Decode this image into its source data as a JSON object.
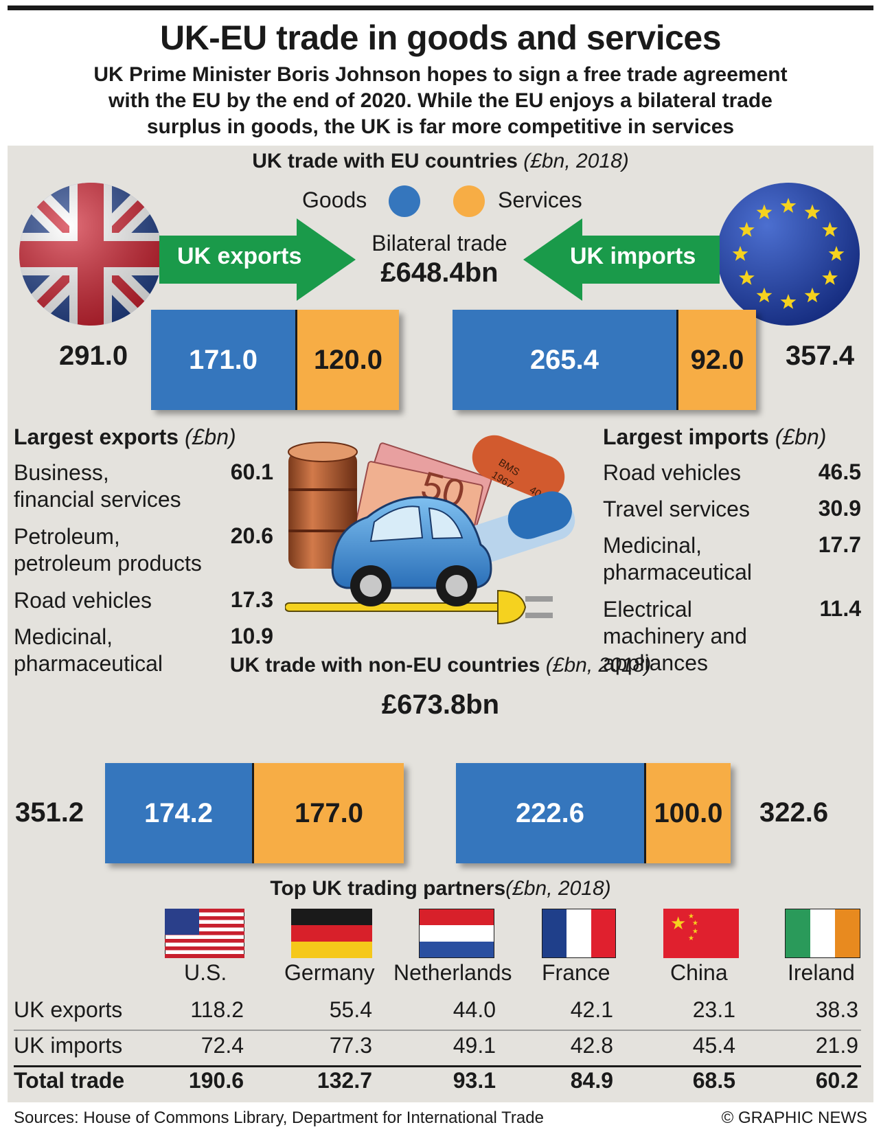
{
  "title": "UK-EU trade in goods and services",
  "subtitle": [
    "UK Prime Minister Boris Johnson hopes to sign a free trade agreement",
    "with the EU by the end of 2020. While the EU enjoys a bilateral trade",
    "surplus in goods, the UK is far more competitive in services"
  ],
  "eu_section": {
    "heading": "UK trade with EU countries",
    "heading_unit": "(£bn, 2018)",
    "legend": {
      "goods": "Goods",
      "services": "Services"
    },
    "exports_label": "UK exports",
    "imports_label": "UK imports",
    "bilateral_label": "Bilateral trade",
    "bilateral_value": "£648.4bn",
    "exports_total": "291.0",
    "exports_goods": "171.0",
    "exports_services": "120.0",
    "imports_goods": "265.4",
    "imports_services": "92.0",
    "imports_total": "357.4"
  },
  "largest_exports": {
    "heading": "Largest exports",
    "unit": "(£bn)",
    "items": [
      {
        "label": [
          "Business,",
          "financial services"
        ],
        "value": "60.1"
      },
      {
        "label": [
          "Petroleum,",
          "petroleum products"
        ],
        "value": "20.6"
      },
      {
        "label": [
          "Road vehicles"
        ],
        "value": "17.3"
      },
      {
        "label": [
          "Medicinal,",
          "pharmaceutical"
        ],
        "value": "10.9"
      }
    ]
  },
  "largest_imports": {
    "heading": "Largest imports",
    "unit": "(£bn)",
    "items": [
      {
        "label": [
          "Road vehicles"
        ],
        "value": "46.5"
      },
      {
        "label": [
          "Travel services"
        ],
        "value": "30.9"
      },
      {
        "label": [
          "Medicinal,",
          "pharmaceutical"
        ],
        "value": "17.7"
      },
      {
        "label": [
          "Electrical",
          "machinery and",
          "appliances"
        ],
        "value": "11.4"
      }
    ]
  },
  "noneu_section": {
    "heading": "UK trade with non-EU countries",
    "heading_unit": "(£bn, 2018)",
    "total": "£673.8bn",
    "exports_total": "351.2",
    "exports_goods": "174.2",
    "exports_services": "177.0",
    "imports_goods": "222.6",
    "imports_services": "100.0",
    "imports_total": "322.6"
  },
  "partners": {
    "heading": "Top UK trading partners",
    "unit": "(£bn, 2018)",
    "countries": [
      "U.S.",
      "Germany",
      "Netherlands",
      "France",
      "China",
      "Ireland"
    ],
    "rows": [
      {
        "label": "UK exports",
        "values": [
          "118.2",
          "55.4",
          "44.0",
          "42.1",
          "23.1",
          "38.3"
        ]
      },
      {
        "label": "UK imports",
        "values": [
          "72.4",
          "77.3",
          "49.1",
          "42.8",
          "45.4",
          "21.9"
        ]
      },
      {
        "label": "Total trade",
        "values": [
          "190.6",
          "132.7",
          "93.1",
          "84.9",
          "68.5",
          "60.2"
        ]
      }
    ]
  },
  "footer": {
    "sources": "Sources: House of Commons Library, Department for International Trade",
    "credit": "© GRAPHIC NEWS"
  },
  "colors": {
    "goods": "#3576bd",
    "services": "#f7ad45",
    "arrow": "#1a9a4a",
    "panel": "#e4e2dd"
  },
  "icons": [
    "uk-flag-icon",
    "eu-flag-icon",
    "oil-barrel-icon",
    "banknotes-icon",
    "pill-icon",
    "car-icon",
    "plug-icon"
  ],
  "chart_data": [
    {
      "type": "bar",
      "title": "UK trade with EU countries (£bn, 2018)",
      "categories": [
        "UK exports",
        "UK imports"
      ],
      "series": [
        {
          "name": "Goods",
          "values": [
            171.0,
            265.4
          ]
        },
        {
          "name": "Services",
          "values": [
            120.0,
            92.0
          ]
        }
      ],
      "totals": [
        291.0,
        357.4
      ],
      "stacked": true
    },
    {
      "type": "bar",
      "title": "UK trade with non-EU countries (£bn, 2018)",
      "categories": [
        "UK exports",
        "UK imports"
      ],
      "series": [
        {
          "name": "Goods",
          "values": [
            174.2,
            222.6
          ]
        },
        {
          "name": "Services",
          "values": [
            177.0,
            100.0
          ]
        }
      ],
      "totals": [
        351.2,
        322.6
      ],
      "stacked": true
    },
    {
      "type": "table",
      "title": "Top UK trading partners (£bn, 2018)",
      "columns": [
        "U.S.",
        "Germany",
        "Netherlands",
        "France",
        "China",
        "Ireland"
      ],
      "rows": [
        {
          "name": "UK exports",
          "values": [
            118.2,
            55.4,
            44.0,
            42.1,
            23.1,
            38.3
          ]
        },
        {
          "name": "UK imports",
          "values": [
            72.4,
            77.3,
            49.1,
            42.8,
            45.4,
            21.9
          ]
        },
        {
          "name": "Total trade",
          "values": [
            190.6,
            132.7,
            93.1,
            84.9,
            68.5,
            60.2
          ]
        }
      ]
    }
  ]
}
